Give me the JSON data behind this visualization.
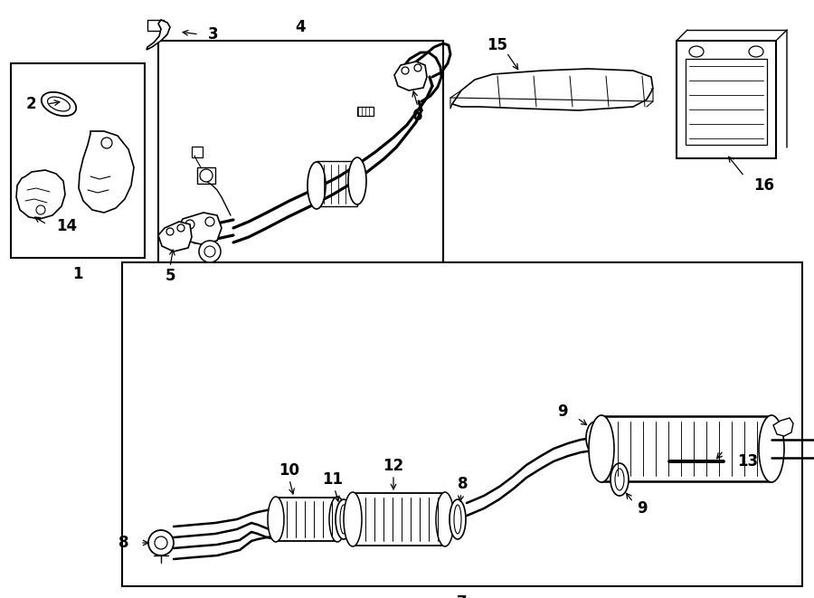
{
  "bg_color": "#ffffff",
  "lc": "#000000",
  "lw": 1.2,
  "blw": 1.8,
  "label_fontsize": 12,
  "fig_w": 9.0,
  "fig_h": 6.61,
  "dpi": 100
}
